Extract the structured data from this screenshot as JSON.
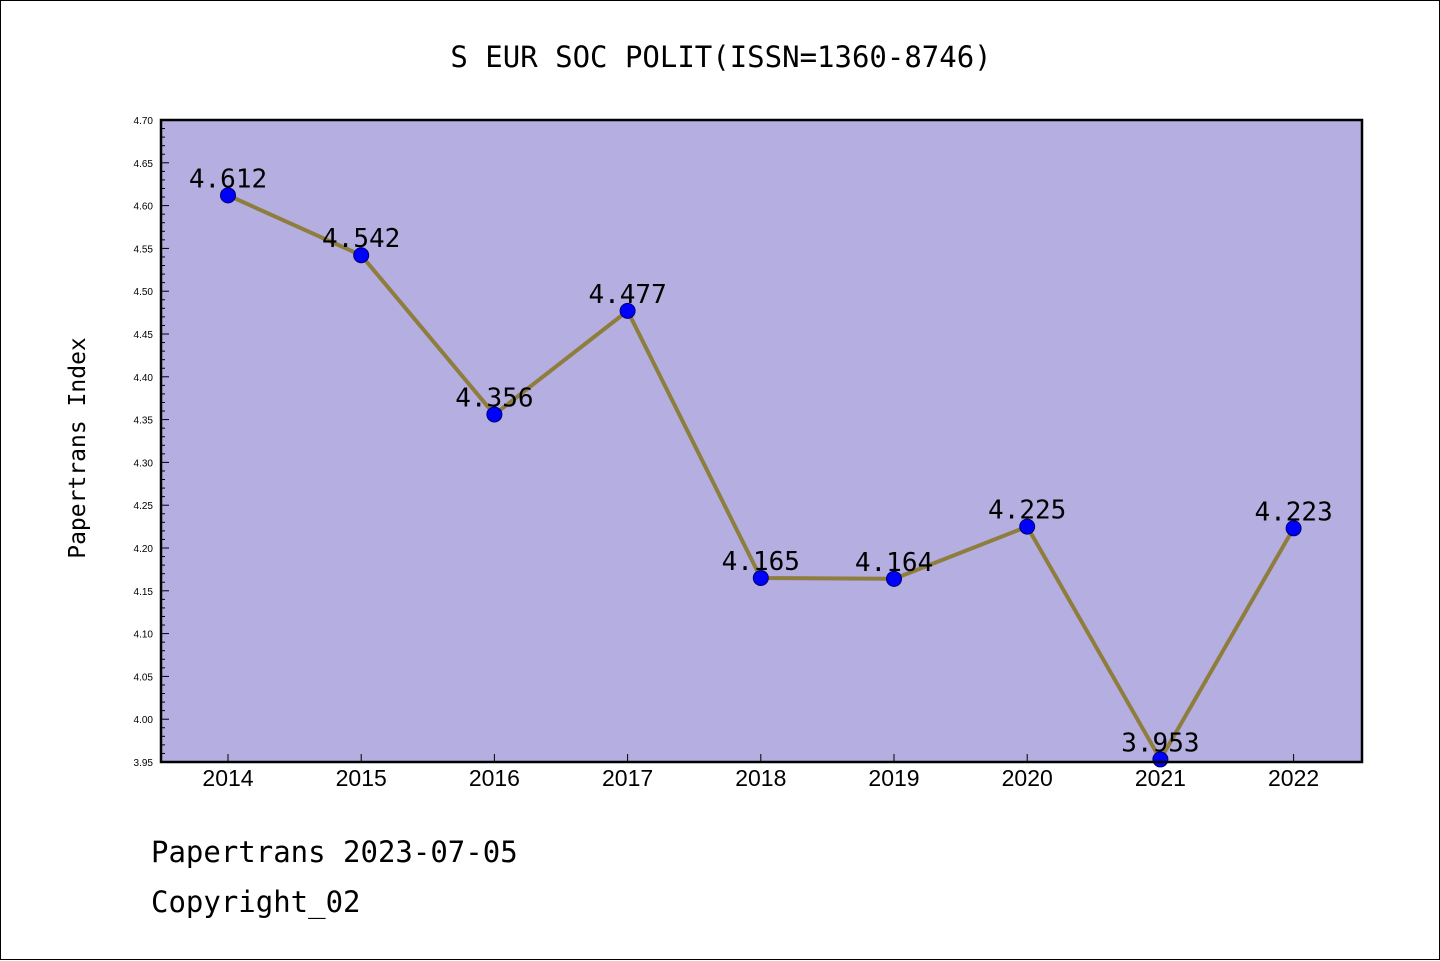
{
  "chart_data": {
    "type": "line",
    "title": "S EUR SOC POLIT(ISSN=1360-8746)",
    "xlabel": "",
    "ylabel": "Papertrans Index",
    "categories": [
      "2014",
      "2015",
      "2016",
      "2017",
      "2018",
      "2019",
      "2020",
      "2021",
      "2022"
    ],
    "values": [
      4.612,
      4.542,
      4.356,
      4.477,
      4.165,
      4.164,
      4.225,
      3.953,
      4.223
    ],
    "data_labels": [
      "4.612",
      "4.542",
      "4.356",
      "4.477",
      "4.165",
      "4.164",
      "4.225",
      "3.953",
      "4.223"
    ],
    "ylim": [
      3.95,
      4.7
    ],
    "y_ticks": [
      "3.95",
      "4.00",
      "4.05",
      "4.10",
      "4.15",
      "4.20",
      "4.25",
      "4.30",
      "4.35",
      "4.40",
      "4.45",
      "4.50",
      "4.55",
      "4.60",
      "4.65",
      "4.70"
    ],
    "grid": false,
    "legend": "none",
    "colors": {
      "plot_background": "#b4aee1",
      "line": "#8e7d3d",
      "marker": "#0000ff",
      "marker_edge": "#00006e"
    }
  },
  "footer": {
    "date_line": "Papertrans 2023-07-05",
    "copyright": "Copyright_02"
  }
}
